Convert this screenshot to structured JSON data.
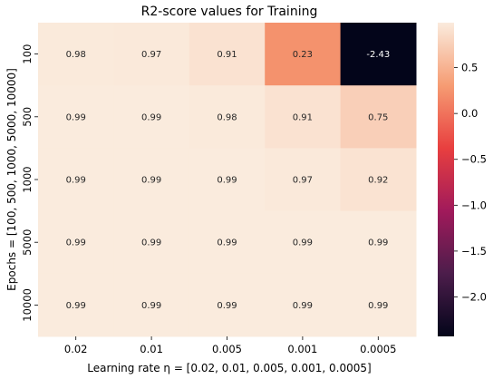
{
  "chart_data": {
    "type": "heatmap",
    "title": "R2-score values for Training",
    "xlabel": "Learning rate η = [0.02, 0.01, 0.005, 0.001, 0.0005]",
    "ylabel": "Epochs = [100, 500, 1000, 5000, 10000]",
    "x_categories": [
      "0.02",
      "0.01",
      "0.005",
      "0.001",
      "0.0005"
    ],
    "y_categories": [
      "100",
      "500",
      "1000",
      "5000",
      "10000"
    ],
    "values": [
      [
        0.98,
        0.97,
        0.91,
        0.23,
        -2.43
      ],
      [
        0.99,
        0.99,
        0.98,
        0.91,
        0.75
      ],
      [
        0.99,
        0.99,
        0.99,
        0.97,
        0.92
      ],
      [
        0.99,
        0.99,
        0.99,
        0.99,
        0.99
      ],
      [
        0.99,
        0.99,
        0.99,
        0.99,
        0.99
      ]
    ],
    "cell_labels": [
      [
        "0.98",
        "0.97",
        "0.91",
        "0.23",
        "-2.43"
      ],
      [
        "0.99",
        "0.99",
        "0.98",
        "0.91",
        "0.75"
      ],
      [
        "0.99",
        "0.99",
        "0.99",
        "0.97",
        "0.92"
      ],
      [
        "0.99",
        "0.99",
        "0.99",
        "0.99",
        "0.99"
      ],
      [
        "0.99",
        "0.99",
        "0.99",
        "0.99",
        "0.99"
      ]
    ],
    "colorbar": {
      "vmin": -2.43,
      "vmax": 0.99,
      "ticks": [
        0.5,
        0.0,
        -0.5,
        -1.0,
        -1.5,
        -2.0
      ],
      "tick_labels": [
        "0.5",
        "0.0",
        "−0.5",
        "−1.0",
        "−1.5",
        "−2.0"
      ]
    },
    "colormap": [
      "#03051a",
      "#4c1d4b",
      "#a11a5b",
      "#e83f3f",
      "#f69c73",
      "#faebdd"
    ]
  }
}
